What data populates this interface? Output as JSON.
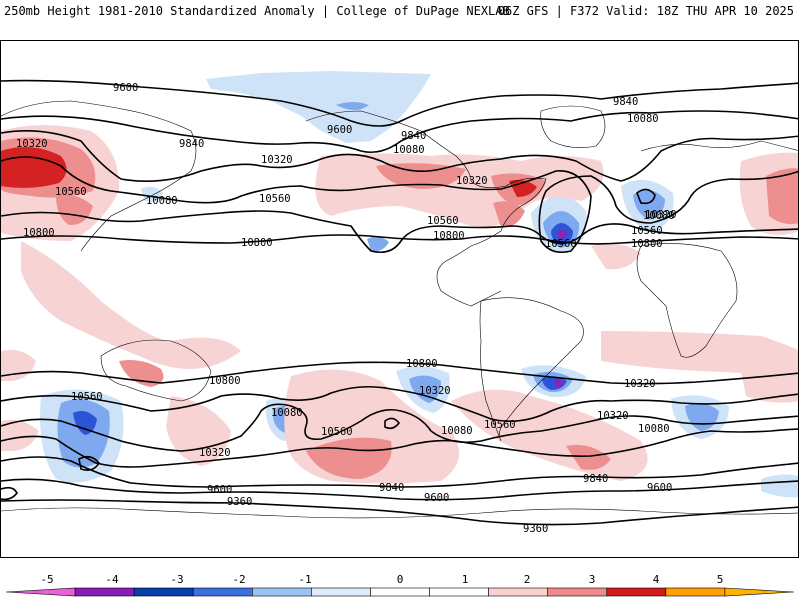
{
  "header": {
    "left": "250mb Height 1981-2010 Standardized Anomaly | College of DuPage NEXLAB",
    "right": "06Z GFS | F372 Valid: 18Z THU APR 10 2025"
  },
  "colorbar": {
    "ticks": [
      "-5",
      "-4",
      "-3",
      "-2",
      "-1",
      "0",
      "1",
      "2",
      "3",
      "4",
      "5"
    ],
    "colors": [
      "#e85fd6",
      "#8a1bb8",
      "#0a3fb0",
      "#3c6fe0",
      "#9cc4f3",
      "#dcecfb",
      "#ffffff",
      "#ffffff",
      "#f9d0d0",
      "#f08a8a",
      "#d11a1a",
      "#ff9f00",
      "#ffb300"
    ]
  },
  "map": {
    "contour_labels": [
      "9600",
      "9600",
      "9840",
      "9840",
      "9840",
      "10080",
      "10080",
      "10080",
      "10320",
      "10320",
      "10320",
      "10320",
      "10560",
      "10560",
      "10560",
      "10560",
      "10800",
      "10800",
      "10800",
      "10560",
      "10080",
      "10800",
      "10320",
      "10800",
      "10800",
      "10560",
      "10560",
      "10080",
      "10320",
      "10320",
      "10080",
      "10560",
      "10320",
      "10080",
      "9840",
      "9600",
      "9840",
      "9600",
      "9600",
      "9360",
      "9360"
    ],
    "anomaly_colors": {
      "neg1": "#cfe3f8",
      "neg2": "#7fa9ee",
      "neg3": "#2c54d6",
      "neg4": "#8b23b5",
      "pos1": "#f8d3d3",
      "pos2": "#ee8f8f",
      "pos3": "#d42121"
    }
  }
}
